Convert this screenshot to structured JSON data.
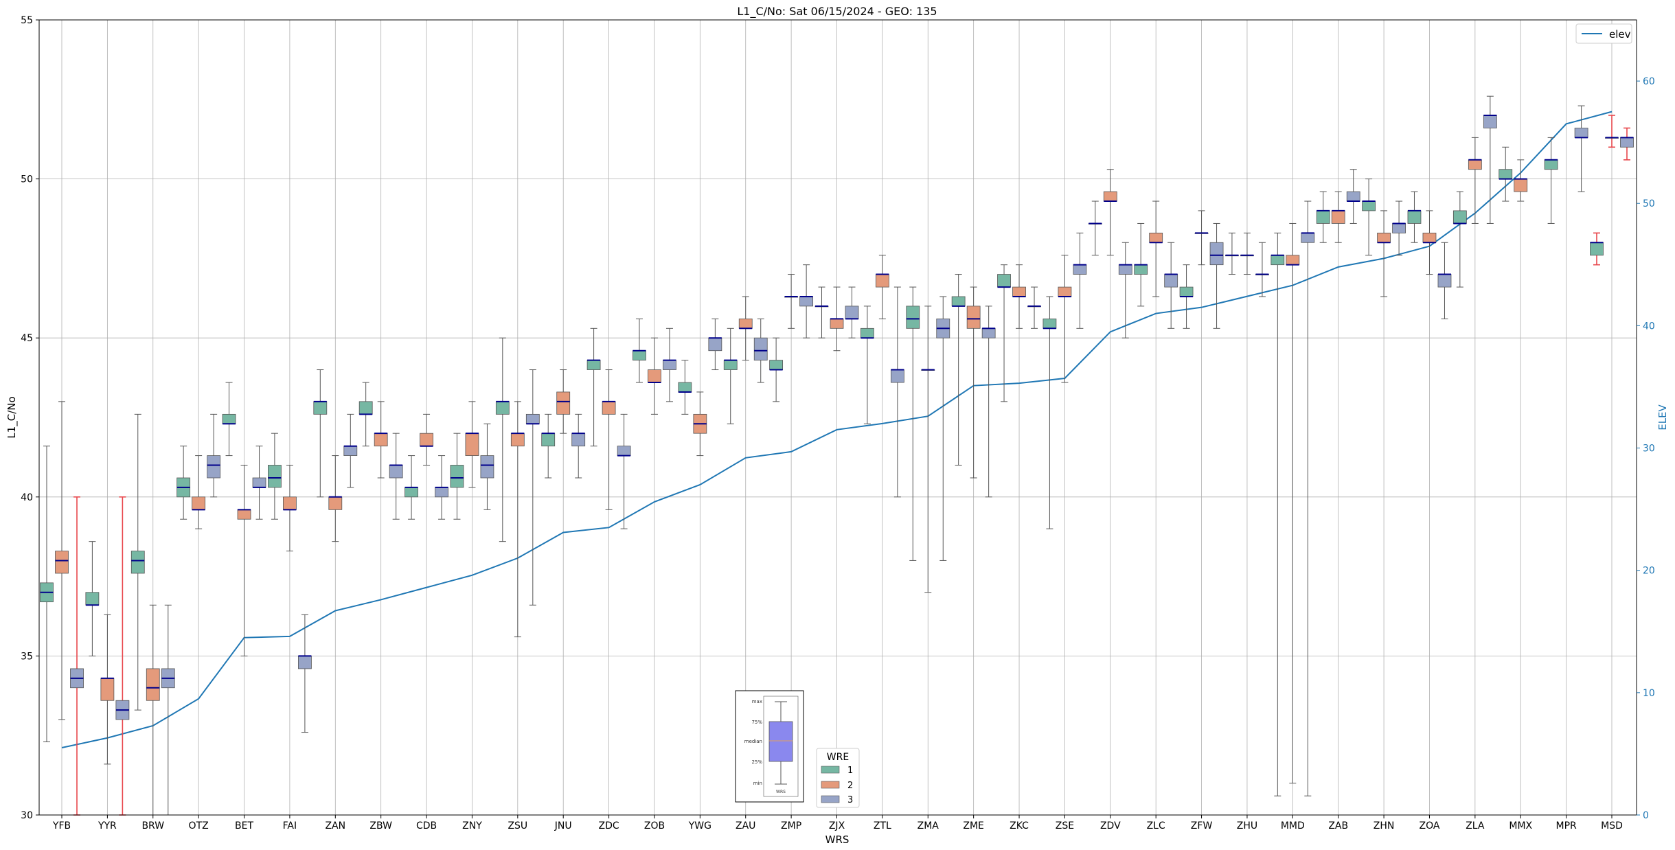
{
  "chart_data": {
    "type": "box",
    "title": "L1_C/No: Sat 06/15/2024 - GEO: 135",
    "xlabel": "WRS",
    "ylabel": "L1_C/No",
    "y2label": "ELEV",
    "ylim": [
      30,
      55
    ],
    "y2lim": [
      0,
      65
    ],
    "yticks": [
      "30",
      "35",
      "40",
      "45",
      "50",
      "55"
    ],
    "y2ticks": [
      "0",
      "10",
      "20",
      "30",
      "40",
      "50",
      "60"
    ],
    "categories": [
      "YFB",
      "YYR",
      "BRW",
      "OTZ",
      "BET",
      "FAI",
      "ZAN",
      "ZBW",
      "CDB",
      "ZNY",
      "ZSU",
      "JNU",
      "ZDC",
      "ZOB",
      "YWG",
      "ZAU",
      "ZMP",
      "ZJX",
      "ZTL",
      "ZMA",
      "ZME",
      "ZKC",
      "ZSE",
      "ZDV",
      "ZLC",
      "ZFW",
      "ZHU",
      "MMD",
      "ZAB",
      "ZHN",
      "ZOA",
      "ZLA",
      "MMX",
      "MPR",
      "MSD"
    ],
    "elev_legend": "elev",
    "elevation": [
      5.5,
      6.3,
      7.3,
      9.5,
      14.5,
      14.6,
      16.7,
      17.6,
      18.6,
      19.6,
      21.0,
      23.1,
      23.5,
      25.6,
      27.0,
      29.2,
      29.7,
      31.5,
      32.0,
      32.6,
      35.1,
      35.3,
      35.7,
      39.5,
      41.0,
      41.5,
      42.4,
      43.3,
      44.8,
      45.5,
      46.5,
      49.2,
      52.5,
      56.5,
      57.5
    ],
    "legend": {
      "title": "WRE",
      "entries": [
        {
          "label": "1",
          "color": "#76b7a3"
        },
        {
          "label": "2",
          "color": "#e49a7b"
        },
        {
          "label": "3",
          "color": "#97a4c7"
        }
      ]
    },
    "boxes": [
      {
        "cat": "YFB",
        "wre": 1,
        "min": 32.3,
        "q1": 36.7,
        "med": 37.0,
        "q3": 37.3,
        "max": 41.6
      },
      {
        "cat": "YFB",
        "wre": 2,
        "min": 33.0,
        "q1": 37.6,
        "med": 38.0,
        "q3": 38.3,
        "max": 43.0
      },
      {
        "cat": "YFB",
        "wre": 3,
        "min": 30.0,
        "q1": 34.0,
        "med": 34.3,
        "q3": 34.6,
        "max": 40.0,
        "red": true
      },
      {
        "cat": "YYR",
        "wre": 1,
        "min": 35.0,
        "q1": 36.6,
        "med": 36.6,
        "q3": 37.0,
        "max": 38.6
      },
      {
        "cat": "YYR",
        "wre": 2,
        "min": 31.6,
        "q1": 33.6,
        "med": 34.3,
        "q3": 34.3,
        "max": 36.3
      },
      {
        "cat": "YYR",
        "wre": 3,
        "min": 30.0,
        "q1": 33.0,
        "med": 33.3,
        "q3": 33.6,
        "max": 40.0,
        "red": true
      },
      {
        "cat": "BRW",
        "wre": 1,
        "min": 33.3,
        "q1": 37.6,
        "med": 38.0,
        "q3": 38.3,
        "max": 42.6
      },
      {
        "cat": "BRW",
        "wre": 2,
        "min": 30.0,
        "q1": 33.6,
        "med": 34.0,
        "q3": 34.6,
        "max": 36.6
      },
      {
        "cat": "BRW",
        "wre": 3,
        "min": 30.0,
        "q1": 34.0,
        "med": 34.3,
        "q3": 34.6,
        "max": 36.6
      },
      {
        "cat": "OTZ",
        "wre": 1,
        "min": 39.3,
        "q1": 40.0,
        "med": 40.3,
        "q3": 40.6,
        "max": 41.6
      },
      {
        "cat": "OTZ",
        "wre": 2,
        "min": 39.0,
        "q1": 39.6,
        "med": 39.6,
        "q3": 40.0,
        "max": 41.3
      },
      {
        "cat": "OTZ",
        "wre": 3,
        "min": 40.0,
        "q1": 40.6,
        "med": 41.0,
        "q3": 41.3,
        "max": 42.6
      },
      {
        "cat": "BET",
        "wre": 1,
        "min": 41.3,
        "q1": 42.3,
        "med": 42.3,
        "q3": 42.6,
        "max": 43.6
      },
      {
        "cat": "BET",
        "wre": 2,
        "min": 35.0,
        "q1": 39.3,
        "med": 39.6,
        "q3": 39.6,
        "max": 41.0
      },
      {
        "cat": "BET",
        "wre": 3,
        "min": 39.3,
        "q1": 40.3,
        "med": 40.3,
        "q3": 40.6,
        "max": 41.6
      },
      {
        "cat": "FAI",
        "wre": 1,
        "min": 39.3,
        "q1": 40.3,
        "med": 40.6,
        "q3": 41.0,
        "max": 42.0
      },
      {
        "cat": "FAI",
        "wre": 2,
        "min": 38.3,
        "q1": 39.6,
        "med": 39.6,
        "q3": 40.0,
        "max": 41.0
      },
      {
        "cat": "FAI",
        "wre": 3,
        "min": 32.6,
        "q1": 34.6,
        "med": 35.0,
        "q3": 35.0,
        "max": 36.3
      },
      {
        "cat": "ZAN",
        "wre": 1,
        "min": 40.0,
        "q1": 42.6,
        "med": 43.0,
        "q3": 43.0,
        "max": 44.0
      },
      {
        "cat": "ZAN",
        "wre": 2,
        "min": 38.6,
        "q1": 39.6,
        "med": 40.0,
        "q3": 40.0,
        "max": 41.3
      },
      {
        "cat": "ZAN",
        "wre": 3,
        "min": 40.3,
        "q1": 41.3,
        "med": 41.6,
        "q3": 41.6,
        "max": 42.6
      },
      {
        "cat": "ZBW",
        "wre": 1,
        "min": 41.6,
        "q1": 42.6,
        "med": 42.6,
        "q3": 43.0,
        "max": 43.6
      },
      {
        "cat": "ZBW",
        "wre": 2,
        "min": 40.6,
        "q1": 41.6,
        "med": 42.0,
        "q3": 42.0,
        "max": 43.0
      },
      {
        "cat": "ZBW",
        "wre": 3,
        "min": 39.3,
        "q1": 40.6,
        "med": 41.0,
        "q3": 41.0,
        "max": 42.0
      },
      {
        "cat": "CDB",
        "wre": 1,
        "min": 39.3,
        "q1": 40.0,
        "med": 40.3,
        "q3": 40.3,
        "max": 41.3
      },
      {
        "cat": "CDB",
        "wre": 2,
        "min": 41.0,
        "q1": 41.6,
        "med": 41.6,
        "q3": 42.0,
        "max": 42.6
      },
      {
        "cat": "CDB",
        "wre": 3,
        "min": 39.3,
        "q1": 40.0,
        "med": 40.3,
        "q3": 40.3,
        "max": 41.3
      },
      {
        "cat": "ZNY",
        "wre": 1,
        "min": 39.3,
        "q1": 40.3,
        "med": 40.6,
        "q3": 41.0,
        "max": 42.0
      },
      {
        "cat": "ZNY",
        "wre": 2,
        "min": 40.3,
        "q1": 41.3,
        "med": 42.0,
        "q3": 42.0,
        "max": 43.0
      },
      {
        "cat": "ZNY",
        "wre": 3,
        "min": 39.6,
        "q1": 40.6,
        "med": 41.0,
        "q3": 41.3,
        "max": 42.3
      },
      {
        "cat": "ZSU",
        "wre": 1,
        "min": 38.6,
        "q1": 42.6,
        "med": 43.0,
        "q3": 43.0,
        "max": 45.0
      },
      {
        "cat": "ZSU",
        "wre": 2,
        "min": 35.6,
        "q1": 41.6,
        "med": 42.0,
        "q3": 42.0,
        "max": 43.0
      },
      {
        "cat": "ZSU",
        "wre": 3,
        "min": 36.6,
        "q1": 42.3,
        "med": 42.3,
        "q3": 42.6,
        "max": 44.0
      },
      {
        "cat": "JNU",
        "wre": 1,
        "min": 40.6,
        "q1": 41.6,
        "med": 42.0,
        "q3": 42.0,
        "max": 42.6
      },
      {
        "cat": "JNU",
        "wre": 2,
        "min": 42.0,
        "q1": 42.6,
        "med": 43.0,
        "q3": 43.3,
        "max": 44.0
      },
      {
        "cat": "JNU",
        "wre": 3,
        "min": 40.6,
        "q1": 41.6,
        "med": 42.0,
        "q3": 42.0,
        "max": 42.6
      },
      {
        "cat": "ZDC",
        "wre": 1,
        "min": 41.6,
        "q1": 44.0,
        "med": 44.3,
        "q3": 44.3,
        "max": 45.3
      },
      {
        "cat": "ZDC",
        "wre": 2,
        "min": 39.6,
        "q1": 42.6,
        "med": 43.0,
        "q3": 43.0,
        "max": 44.0
      },
      {
        "cat": "ZDC",
        "wre": 3,
        "min": 39.0,
        "q1": 41.3,
        "med": 41.3,
        "q3": 41.6,
        "max": 42.6
      },
      {
        "cat": "ZOB",
        "wre": 1,
        "min": 43.6,
        "q1": 44.3,
        "med": 44.6,
        "q3": 44.6,
        "max": 45.6
      },
      {
        "cat": "ZOB",
        "wre": 2,
        "min": 42.6,
        "q1": 43.6,
        "med": 43.6,
        "q3": 44.0,
        "max": 45.0
      },
      {
        "cat": "ZOB",
        "wre": 3,
        "min": 43.0,
        "q1": 44.0,
        "med": 44.3,
        "q3": 44.3,
        "max": 45.3
      },
      {
        "cat": "YWG",
        "wre": 1,
        "min": 42.6,
        "q1": 43.3,
        "med": 43.3,
        "q3": 43.6,
        "max": 44.3
      },
      {
        "cat": "YWG",
        "wre": 2,
        "min": 41.3,
        "q1": 42.0,
        "med": 42.3,
        "q3": 42.6,
        "max": 43.3
      },
      {
        "cat": "YWG",
        "wre": 3,
        "min": 44.0,
        "q1": 44.6,
        "med": 45.0,
        "q3": 45.0,
        "max": 45.6
      },
      {
        "cat": "ZAU",
        "wre": 1,
        "min": 42.3,
        "q1": 44.0,
        "med": 44.3,
        "q3": 44.3,
        "max": 45.3
      },
      {
        "cat": "ZAU",
        "wre": 2,
        "min": 44.3,
        "q1": 45.3,
        "med": 45.3,
        "q3": 45.6,
        "max": 46.3
      },
      {
        "cat": "ZAU",
        "wre": 3,
        "min": 43.6,
        "q1": 44.3,
        "med": 44.6,
        "q3": 45.0,
        "max": 45.6
      },
      {
        "cat": "ZMP",
        "wre": 1,
        "min": 43.0,
        "q1": 44.0,
        "med": 44.0,
        "q3": 44.3,
        "max": 45.0
      },
      {
        "cat": "ZMP",
        "wre": 2,
        "min": 45.3,
        "q1": 46.3,
        "med": 46.3,
        "q3": 46.3,
        "max": 47.0
      },
      {
        "cat": "ZMP",
        "wre": 3,
        "min": 45.0,
        "q1": 46.0,
        "med": 46.3,
        "q3": 46.3,
        "max": 47.3
      },
      {
        "cat": "ZJX",
        "wre": 1,
        "min": 45.0,
        "q1": 46.0,
        "med": 46.0,
        "q3": 46.0,
        "max": 46.6
      },
      {
        "cat": "ZJX",
        "wre": 2,
        "min": 44.6,
        "q1": 45.3,
        "med": 45.6,
        "q3": 45.6,
        "max": 46.6
      },
      {
        "cat": "ZJX",
        "wre": 3,
        "min": 45.0,
        "q1": 45.6,
        "med": 45.6,
        "q3": 46.0,
        "max": 46.6
      },
      {
        "cat": "ZTL",
        "wre": 1,
        "min": 42.3,
        "q1": 45.0,
        "med": 45.0,
        "q3": 45.3,
        "max": 46.0
      },
      {
        "cat": "ZTL",
        "wre": 2,
        "min": 45.6,
        "q1": 46.6,
        "med": 47.0,
        "q3": 47.0,
        "max": 47.6
      },
      {
        "cat": "ZTL",
        "wre": 3,
        "min": 40.0,
        "q1": 43.6,
        "med": 44.0,
        "q3": 44.0,
        "max": 46.6
      },
      {
        "cat": "ZMA",
        "wre": 1,
        "min": 38.0,
        "q1": 45.3,
        "med": 45.6,
        "q3": 46.0,
        "max": 46.6
      },
      {
        "cat": "ZMA",
        "wre": 2,
        "min": 37.0,
        "q1": 44.0,
        "med": 44.0,
        "q3": 44.0,
        "max": 46.0
      },
      {
        "cat": "ZMA",
        "wre": 3,
        "min": 38.0,
        "q1": 45.0,
        "med": 45.3,
        "q3": 45.6,
        "max": 46.3
      },
      {
        "cat": "ZME",
        "wre": 1,
        "min": 41.0,
        "q1": 46.0,
        "med": 46.0,
        "q3": 46.3,
        "max": 47.0
      },
      {
        "cat": "ZME",
        "wre": 2,
        "min": 40.6,
        "q1": 45.3,
        "med": 45.6,
        "q3": 46.0,
        "max": 46.6
      },
      {
        "cat": "ZME",
        "wre": 3,
        "min": 40.0,
        "q1": 45.0,
        "med": 45.3,
        "q3": 45.3,
        "max": 46.0
      },
      {
        "cat": "ZKC",
        "wre": 1,
        "min": 43.0,
        "q1": 46.6,
        "med": 46.6,
        "q3": 47.0,
        "max": 47.3
      },
      {
        "cat": "ZKC",
        "wre": 2,
        "min": 45.3,
        "q1": 46.3,
        "med": 46.3,
        "q3": 46.6,
        "max": 47.3
      },
      {
        "cat": "ZKC",
        "wre": 3,
        "min": 45.3,
        "q1": 46.0,
        "med": 46.0,
        "q3": 46.0,
        "max": 46.6
      },
      {
        "cat": "ZSE",
        "wre": 1,
        "min": 39.0,
        "q1": 45.3,
        "med": 45.3,
        "q3": 45.6,
        "max": 46.3
      },
      {
        "cat": "ZSE",
        "wre": 2,
        "min": 43.6,
        "q1": 46.3,
        "med": 46.3,
        "q3": 46.6,
        "max": 47.6
      },
      {
        "cat": "ZSE",
        "wre": 3,
        "min": 45.3,
        "q1": 47.0,
        "med": 47.3,
        "q3": 47.3,
        "max": 48.3
      },
      {
        "cat": "ZDV",
        "wre": 1,
        "min": 47.6,
        "q1": 48.6,
        "med": 48.6,
        "q3": 48.6,
        "max": 49.3
      },
      {
        "cat": "ZDV",
        "wre": 2,
        "min": 47.6,
        "q1": 49.3,
        "med": 49.3,
        "q3": 49.6,
        "max": 50.3
      },
      {
        "cat": "ZDV",
        "wre": 3,
        "min": 45.0,
        "q1": 47.0,
        "med": 47.3,
        "q3": 47.3,
        "max": 48.0
      },
      {
        "cat": "ZLC",
        "wre": 1,
        "min": 46.0,
        "q1": 47.0,
        "med": 47.3,
        "q3": 47.3,
        "max": 48.6
      },
      {
        "cat": "ZLC",
        "wre": 2,
        "min": 46.3,
        "q1": 48.0,
        "med": 48.0,
        "q3": 48.3,
        "max": 49.3
      },
      {
        "cat": "ZLC",
        "wre": 3,
        "min": 45.3,
        "q1": 46.6,
        "med": 47.0,
        "q3": 47.0,
        "max": 48.0
      },
      {
        "cat": "ZFW",
        "wre": 1,
        "min": 45.3,
        "q1": 46.3,
        "med": 46.3,
        "q3": 46.6,
        "max": 47.3
      },
      {
        "cat": "ZFW",
        "wre": 2,
        "min": 47.3,
        "q1": 48.3,
        "med": 48.3,
        "q3": 48.3,
        "max": 49.0
      },
      {
        "cat": "ZFW",
        "wre": 3,
        "min": 45.3,
        "q1": 47.3,
        "med": 47.6,
        "q3": 48.0,
        "max": 48.6
      },
      {
        "cat": "ZHU",
        "wre": 1,
        "min": 47.0,
        "q1": 47.6,
        "med": 47.6,
        "q3": 47.6,
        "max": 48.3
      },
      {
        "cat": "ZHU",
        "wre": 2,
        "min": 47.0,
        "q1": 47.6,
        "med": 47.6,
        "q3": 47.6,
        "max": 48.3
      },
      {
        "cat": "ZHU",
        "wre": 3,
        "min": 46.3,
        "q1": 47.0,
        "med": 47.0,
        "q3": 47.0,
        "max": 48.0
      },
      {
        "cat": "MMD",
        "wre": 1,
        "min": 30.6,
        "q1": 47.3,
        "med": 47.6,
        "q3": 47.6,
        "max": 48.3
      },
      {
        "cat": "MMD",
        "wre": 2,
        "min": 31.0,
        "q1": 47.3,
        "med": 47.3,
        "q3": 47.6,
        "max": 48.6
      },
      {
        "cat": "MMD",
        "wre": 3,
        "min": 30.6,
        "q1": 48.0,
        "med": 48.3,
        "q3": 48.3,
        "max": 49.3
      },
      {
        "cat": "ZAB",
        "wre": 1,
        "min": 48.0,
        "q1": 48.6,
        "med": 49.0,
        "q3": 49.0,
        "max": 49.6
      },
      {
        "cat": "ZAB",
        "wre": 2,
        "min": 48.0,
        "q1": 48.6,
        "med": 49.0,
        "q3": 49.0,
        "max": 49.6
      },
      {
        "cat": "ZAB",
        "wre": 3,
        "min": 48.6,
        "q1": 49.3,
        "med": 49.3,
        "q3": 49.6,
        "max": 50.3
      },
      {
        "cat": "ZHN",
        "wre": 1,
        "min": 47.6,
        "q1": 49.0,
        "med": 49.3,
        "q3": 49.3,
        "max": 50.0
      },
      {
        "cat": "ZHN",
        "wre": 2,
        "min": 46.3,
        "q1": 48.0,
        "med": 48.0,
        "q3": 48.3,
        "max": 49.0
      },
      {
        "cat": "ZHN",
        "wre": 3,
        "min": 47.6,
        "q1": 48.3,
        "med": 48.6,
        "q3": 48.6,
        "max": 49.3
      },
      {
        "cat": "ZOA",
        "wre": 1,
        "min": 48.0,
        "q1": 48.6,
        "med": 49.0,
        "q3": 49.0,
        "max": 49.6
      },
      {
        "cat": "ZOA",
        "wre": 2,
        "min": 47.0,
        "q1": 48.0,
        "med": 48.0,
        "q3": 48.3,
        "max": 49.0
      },
      {
        "cat": "ZOA",
        "wre": 3,
        "min": 45.6,
        "q1": 46.6,
        "med": 47.0,
        "q3": 47.0,
        "max": 48.0
      },
      {
        "cat": "ZLA",
        "wre": 1,
        "min": 46.6,
        "q1": 48.6,
        "med": 48.6,
        "q3": 49.0,
        "max": 49.6
      },
      {
        "cat": "ZLA",
        "wre": 2,
        "min": 48.6,
        "q1": 50.3,
        "med": 50.6,
        "q3": 50.6,
        "max": 51.3
      },
      {
        "cat": "ZLA",
        "wre": 3,
        "min": 48.6,
        "q1": 51.6,
        "med": 52.0,
        "q3": 52.0,
        "max": 52.6
      },
      {
        "cat": "MMX",
        "wre": 1,
        "min": 49.3,
        "q1": 50.0,
        "med": 50.0,
        "q3": 50.3,
        "max": 51.0
      },
      {
        "cat": "MMX",
        "wre": 2,
        "min": 49.3,
        "q1": 49.6,
        "med": 50.0,
        "q3": 50.0,
        "max": 50.6
      },
      {
        "cat": "MMX",
        "wre": 3,
        "min": null,
        "q1": null,
        "med": null,
        "q3": null,
        "max": null
      },
      {
        "cat": "MPR",
        "wre": 1,
        "min": 48.6,
        "q1": 50.3,
        "med": 50.6,
        "q3": 50.6,
        "max": 51.3
      },
      {
        "cat": "MPR",
        "wre": 2,
        "min": null,
        "q1": null,
        "med": null,
        "q3": null,
        "max": null
      },
      {
        "cat": "MPR",
        "wre": 3,
        "min": 49.6,
        "q1": 51.3,
        "med": 51.3,
        "q3": 51.6,
        "max": 52.3
      },
      {
        "cat": "MSD",
        "wre": 1,
        "min": 47.3,
        "q1": 47.6,
        "med": 48.0,
        "q3": 48.0,
        "max": 48.3,
        "red": true
      },
      {
        "cat": "MSD",
        "wre": 2,
        "min": 51.0,
        "q1": 51.3,
        "med": 51.3,
        "q3": 51.3,
        "max": 52.0,
        "red": true
      },
      {
        "cat": "MSD",
        "wre": 3,
        "min": 50.6,
        "q1": 51.0,
        "med": 51.3,
        "q3": 51.3,
        "max": 51.6,
        "red": true
      }
    ],
    "key_box": {
      "labels": [
        "max",
        "75%",
        "median",
        "25%",
        "min"
      ],
      "caption": "WRS"
    }
  }
}
